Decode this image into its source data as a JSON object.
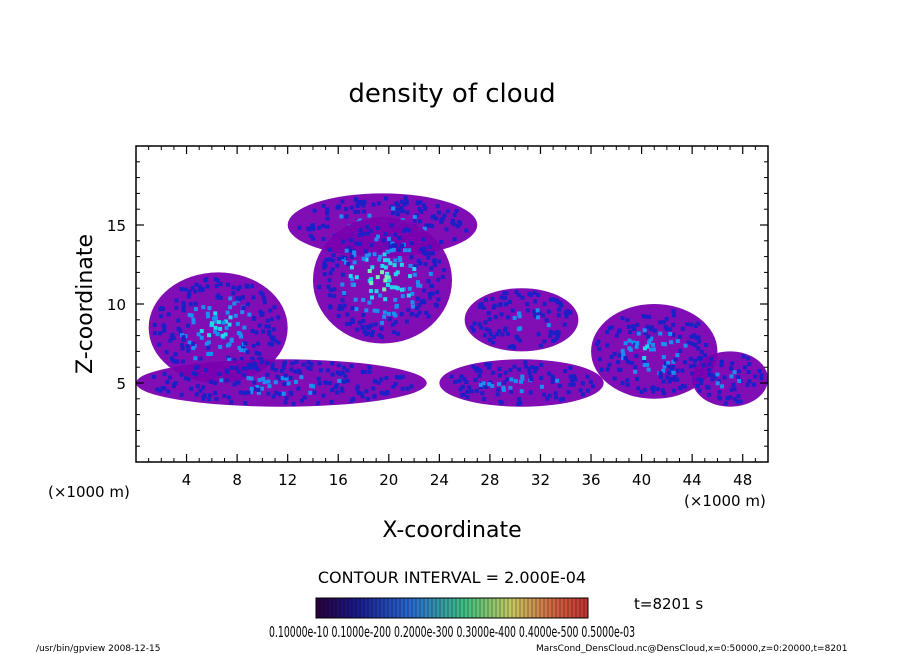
{
  "chart_data": {
    "type": "heatmap",
    "title": "density of cloud",
    "xlabel": "X-coordinate",
    "ylabel": "Z-coordinate",
    "x_unit": "(×1000 m)",
    "x_unit_right": "(×1000 m)",
    "xlim": [
      0,
      50
    ],
    "ylim": [
      0,
      20
    ],
    "x_ticks": [
      4,
      8,
      12,
      16,
      20,
      24,
      28,
      32,
      36,
      40,
      44,
      48
    ],
    "y_ticks": [
      5,
      10,
      15
    ],
    "contour_interval": "CONTOUR INTERVAL = 2.000E-04",
    "time_label": "t=8201 s",
    "colorbar_labels": "0.10000e-10 0.1000e-200 0.2000e-300 0.3000e-400 0.4000e-500 0.5000e-03",
    "colormap": [
      "#7a00b0",
      "#1a20c8",
      "#1b8ff0",
      "#22d8e8",
      "#7cf0b0"
    ],
    "regions": [
      {
        "name": "upper-cloud",
        "x": [
          12,
          27
        ],
        "z": [
          13,
          17
        ],
        "intensity": 0.45
      },
      {
        "name": "central-core",
        "x": [
          14,
          25
        ],
        "z": [
          7.5,
          15.5
        ],
        "intensity": 0.8
      },
      {
        "name": "left-cloud",
        "x": [
          1,
          12
        ],
        "z": [
          5,
          12
        ],
        "intensity": 0.6
      },
      {
        "name": "lower-band-left",
        "x": [
          0,
          23
        ],
        "z": [
          3.5,
          6.5
        ],
        "intensity": 0.4
      },
      {
        "name": "mid-right-cloud",
        "x": [
          26,
          35
        ],
        "z": [
          7,
          11
        ],
        "intensity": 0.4
      },
      {
        "name": "lower-band-mid",
        "x": [
          24,
          37
        ],
        "z": [
          3.5,
          6.5
        ],
        "intensity": 0.45
      },
      {
        "name": "right-cloud",
        "x": [
          36,
          46
        ],
        "z": [
          4,
          10
        ],
        "intensity": 0.5
      },
      {
        "name": "far-right-band",
        "x": [
          44,
          50
        ],
        "z": [
          3.5,
          7
        ],
        "intensity": 0.3
      }
    ]
  },
  "footer": {
    "left": "/usr/bin/gpview   2008-12-15",
    "right": "MarsCond_DensCloud.nc@DensCloud,x=0:50000,z=0:20000,t=8201"
  }
}
